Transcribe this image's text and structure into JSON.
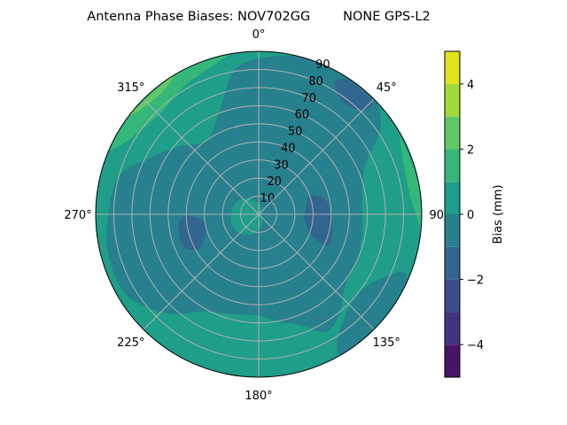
{
  "chart_data": {
    "type": "polar-contour",
    "title": "Antenna Phase Biases: NOV702GG        NONE GPS-L2",
    "theta_direction": "clockwise",
    "theta_zero": "top",
    "theta_ticks": [
      "0°",
      "45°",
      "90°",
      "135°",
      "180°",
      "225°",
      "270°",
      "315°"
    ],
    "r_ticks": [
      "10",
      "20",
      "30",
      "40",
      "50",
      "60",
      "70",
      "80",
      "90"
    ],
    "r_range": [
      0,
      90
    ],
    "grid": true,
    "colorbar": {
      "label": "Bias (mm)",
      "range": [
        -5,
        5
      ],
      "levels": [
        -5,
        -4,
        -3,
        -2,
        -1,
        0,
        1,
        2,
        3,
        4,
        5
      ],
      "colors": [
        "#471467",
        "#46337f",
        "#3f4a8a",
        "#32668e",
        "#27808e",
        "#1f9e89",
        "#35b779",
        "#61c865",
        "#a0da39",
        "#e1e31b"
      ],
      "ticks": [
        "−4",
        "−2",
        "0",
        "2",
        "4"
      ],
      "tick_values": [
        -4,
        -2,
        0,
        2,
        4
      ],
      "colormap": "viridis"
    },
    "background_level": "0 to 1",
    "regions": [
      {
        "level": "-1 to 0",
        "points": [
          [
            0,
            86
          ],
          [
            15,
            90
          ],
          [
            30,
            90
          ],
          [
            45,
            90
          ],
          [
            55,
            82
          ],
          [
            65,
            65
          ],
          [
            80,
            58
          ],
          [
            90,
            57
          ],
          [
            100,
            58
          ],
          [
            115,
            60
          ],
          [
            130,
            62
          ],
          [
            140,
            70
          ],
          [
            150,
            75
          ],
          [
            160,
            65
          ],
          [
            170,
            60
          ],
          [
            180,
            56
          ],
          [
            195,
            57
          ],
          [
            210,
            62
          ],
          [
            220,
            72
          ],
          [
            230,
            80
          ],
          [
            240,
            86
          ],
          [
            255,
            86
          ],
          [
            270,
            83
          ],
          [
            285,
            80
          ],
          [
            295,
            70
          ],
          [
            310,
            58
          ],
          [
            325,
            50
          ],
          [
            340,
            62
          ],
          [
            350,
            80
          ]
        ]
      },
      {
        "level": "-1 to 0",
        "points": [
          [
            112,
            85
          ],
          [
            120,
            74
          ],
          [
            130,
            70
          ],
          [
            140,
            74
          ],
          [
            148,
            82
          ],
          [
            150,
            90
          ],
          [
            140,
            90
          ],
          [
            125,
            90
          ],
          [
            115,
            90
          ]
        ]
      },
      {
        "level": "-2 to -1",
        "points": [
          [
            70,
            30
          ],
          [
            85,
            26
          ],
          [
            100,
            26
          ],
          [
            112,
            32
          ],
          [
            115,
            42
          ],
          [
            105,
            42
          ],
          [
            92,
            40
          ],
          [
            78,
            38
          ]
        ]
      },
      {
        "level": "-2 to -1",
        "points": [
          [
            240,
            38
          ],
          [
            248,
            32
          ],
          [
            258,
            30
          ],
          [
            266,
            33
          ],
          [
            268,
            42
          ],
          [
            258,
            45
          ],
          [
            246,
            45
          ]
        ]
      },
      {
        "level": "-2 to -1",
        "points": [
          [
            30,
            84
          ],
          [
            36,
            78
          ],
          [
            44,
            80
          ],
          [
            46,
            88
          ],
          [
            40,
            89
          ],
          [
            33,
            89
          ]
        ]
      },
      {
        "level": "0 to 1",
        "points": [
          [
            180,
            8
          ],
          [
            200,
            12
          ],
          [
            225,
            15
          ],
          [
            250,
            16
          ],
          [
            275,
            15
          ],
          [
            300,
            14
          ],
          [
            330,
            10
          ],
          [
            360,
            6
          ],
          [
            30,
            3
          ],
          [
            150,
            4
          ]
        ]
      },
      {
        "level": "1 to 2",
        "points": [
          [
            295,
            87
          ],
          [
            305,
            80
          ],
          [
            318,
            78
          ],
          [
            330,
            82
          ],
          [
            345,
            87
          ],
          [
            350,
            90
          ],
          [
            330,
            90
          ],
          [
            310,
            90
          ],
          [
            295,
            90
          ]
        ]
      },
      {
        "level": "1 to 2",
        "points": [
          [
            62,
            89
          ],
          [
            70,
            85
          ],
          [
            82,
            84
          ],
          [
            92,
            88
          ],
          [
            95,
            90
          ],
          [
            80,
            90
          ]
        ]
      },
      {
        "level": "2 to 3",
        "points": [
          [
            308,
            90
          ],
          [
            312,
            87
          ],
          [
            322,
            86
          ],
          [
            328,
            90
          ]
        ]
      }
    ]
  }
}
